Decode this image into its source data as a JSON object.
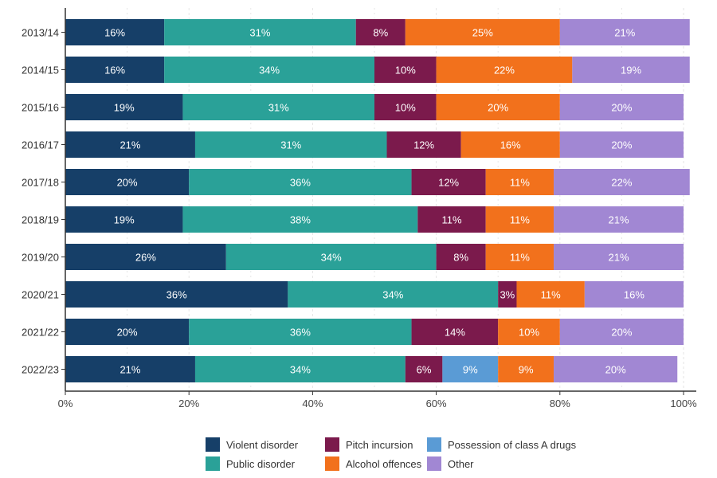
{
  "chart_data": {
    "type": "bar",
    "orientation": "horizontal",
    "stacked": true,
    "title": "",
    "xlabel": "",
    "ylabel": "",
    "xlim": [
      0,
      100
    ],
    "x_ticks": [
      "0%",
      "20%",
      "40%",
      "60%",
      "80%",
      "100%"
    ],
    "grid": "vertical dotted",
    "legend_position": "bottom",
    "categories": [
      "2013/14",
      "2014/15",
      "2015/16",
      "2016/17",
      "2017/18",
      "2018/19",
      "2019/20",
      "2020/21",
      "2021/22",
      "2022/23"
    ],
    "series": [
      {
        "name": "Violent disorder",
        "color": "#163f68",
        "values": [
          16,
          16,
          19,
          21,
          20,
          19,
          26,
          36,
          20,
          21
        ]
      },
      {
        "name": "Public disorder",
        "color": "#2aa198",
        "values": [
          31,
          34,
          31,
          31,
          36,
          38,
          34,
          34,
          36,
          34
        ]
      },
      {
        "name": "Pitch incursion",
        "color": "#7b1a4c",
        "values": [
          8,
          10,
          10,
          12,
          12,
          11,
          8,
          3,
          14,
          6
        ]
      },
      {
        "name": "Possession of class A drugs",
        "color": "#5a9bd5",
        "values": [
          0,
          0,
          0,
          0,
          0,
          0,
          0,
          0,
          0,
          9
        ]
      },
      {
        "name": "Alcohol offences",
        "color": "#f2711c",
        "values": [
          25,
          22,
          20,
          16,
          11,
          11,
          11,
          11,
          10,
          9
        ]
      },
      {
        "name": "Other",
        "color": "#a187d3",
        "values": [
          21,
          19,
          20,
          20,
          22,
          21,
          21,
          16,
          20,
          20
        ]
      }
    ]
  },
  "legend_order": [
    0,
    2,
    3,
    1,
    4,
    5
  ]
}
